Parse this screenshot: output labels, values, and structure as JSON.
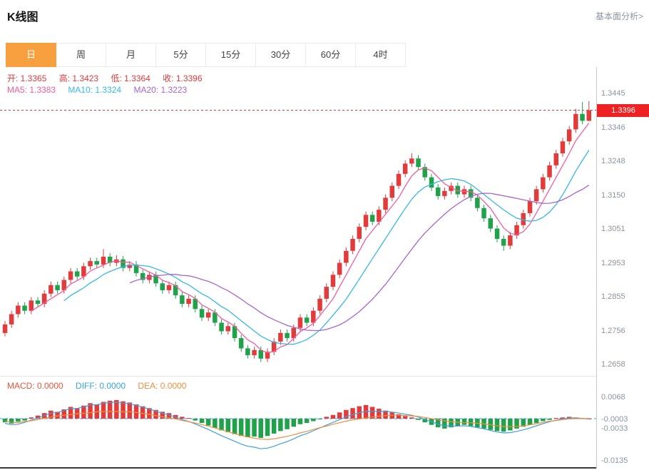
{
  "header": {
    "title": "K线图",
    "link": "基本面分析>"
  },
  "tabs": [
    "日",
    "周",
    "月",
    "5分",
    "15分",
    "30分",
    "60分",
    "4时"
  ],
  "active_tab": "日",
  "legend": {
    "open": "开: 1.3365",
    "high": "高: 1.3423",
    "low": "低: 1.3364",
    "close": "收: 1.3396",
    "ma5": "MA5: 1.3383",
    "ma10": "MA10: 1.3324",
    "ma20": "MA20: 1.3223",
    "macd": "MACD: 0.0000",
    "diff": "DIFF: 0.0000",
    "dea": "DEA: 0.0000"
  },
  "price_tag": "1.3396",
  "axis": {
    "main_ticks": [
      "1.3445",
      "1.3346",
      "1.3248",
      "1.3150",
      "1.3051",
      "1.2953",
      "1.2855",
      "1.2756",
      "1.2658"
    ],
    "macd_ticks": [
      "0.0068",
      "-0.0003",
      "-0.0033",
      "-0.0135"
    ]
  },
  "colors": {
    "up": "#e23b3b",
    "down": "#1fa24a",
    "ma5": "#f55c9c",
    "ma10": "#35b8e8",
    "ma20": "#a866cc",
    "diff": "#41a0dc",
    "dea": "#ef8f3c",
    "tag_bg": "#ee2222",
    "active_tab": "#f8a040"
  },
  "chart_data": {
    "type": "candlestick",
    "title": "K线图 (日)",
    "latest": {
      "open": 1.3365,
      "high": 1.3423,
      "low": 1.3364,
      "close": 1.3396
    },
    "ma": {
      "ma5": 1.3383,
      "ma10": 1.3324,
      "ma20": 1.3223
    },
    "price_axis_range": [
      1.2658,
      1.3445
    ],
    "macd_axis_range": [
      -0.0135,
      0.0068
    ],
    "current_price": 1.3396,
    "candles": [
      [
        1.2745,
        1.278,
        1.2735,
        1.277
      ],
      [
        1.277,
        1.281,
        1.276,
        1.28
      ],
      [
        1.28,
        1.2835,
        1.279,
        1.2825
      ],
      [
        1.2825,
        1.2835,
        1.28,
        1.281
      ],
      [
        1.281,
        1.285,
        1.28,
        1.284
      ],
      [
        1.284,
        1.285,
        1.282,
        1.283
      ],
      [
        1.283,
        1.287,
        1.282,
        1.286
      ],
      [
        1.286,
        1.2895,
        1.285,
        1.2885
      ],
      [
        1.2885,
        1.2895,
        1.286,
        1.287
      ],
      [
        1.287,
        1.291,
        1.286,
        1.29
      ],
      [
        1.29,
        1.2935,
        1.289,
        1.2925
      ],
      [
        1.2925,
        1.2935,
        1.29,
        1.291
      ],
      [
        1.291,
        1.295,
        1.29,
        1.294
      ],
      [
        1.294,
        1.2965,
        1.293,
        1.2955
      ],
      [
        1.2955,
        1.2965,
        1.2935,
        1.2945
      ],
      [
        1.2945,
        1.299,
        1.2935,
        1.2968
      ],
      [
        1.2968,
        1.2978,
        1.294,
        1.295
      ],
      [
        1.295,
        1.2972,
        1.294,
        1.296
      ],
      [
        1.296,
        1.297,
        1.2925,
        1.2935
      ],
      [
        1.2935,
        1.2955,
        1.2925,
        1.2945
      ],
      [
        1.2945,
        1.2955,
        1.291,
        1.292
      ],
      [
        1.292,
        1.293,
        1.289,
        1.29
      ],
      [
        1.29,
        1.2925,
        1.289,
        1.2915
      ],
      [
        1.2915,
        1.2925,
        1.288,
        1.289
      ],
      [
        1.289,
        1.29,
        1.286,
        1.287
      ],
      [
        1.287,
        1.2895,
        1.286,
        1.2885
      ],
      [
        1.2885,
        1.2895,
        1.2845,
        1.2855
      ],
      [
        1.2855,
        1.2865,
        1.282,
        1.283
      ],
      [
        1.283,
        1.2855,
        1.282,
        1.2845
      ],
      [
        1.2845,
        1.2855,
        1.2805,
        1.2815
      ],
      [
        1.2815,
        1.2825,
        1.278,
        1.279
      ],
      [
        1.279,
        1.2815,
        1.278,
        1.2805
      ],
      [
        1.2805,
        1.2815,
        1.2765,
        1.2775
      ],
      [
        1.2775,
        1.2785,
        1.274,
        1.275
      ],
      [
        1.275,
        1.2775,
        1.274,
        1.2765
      ],
      [
        1.2765,
        1.2775,
        1.272,
        1.273
      ],
      [
        1.273,
        1.274,
        1.269,
        1.27
      ],
      [
        1.27,
        1.271,
        1.267,
        1.268
      ],
      [
        1.268,
        1.2705,
        1.267,
        1.2695
      ],
      [
        1.2695,
        1.2705,
        1.266,
        1.267
      ],
      [
        1.267,
        1.27,
        1.266,
        1.269
      ],
      [
        1.269,
        1.273,
        1.268,
        1.272
      ],
      [
        1.272,
        1.2755,
        1.271,
        1.2745
      ],
      [
        1.2745,
        1.2755,
        1.272,
        1.273
      ],
      [
        1.273,
        1.277,
        1.272,
        1.276
      ],
      [
        1.276,
        1.28,
        1.275,
        1.279
      ],
      [
        1.279,
        1.28,
        1.2765,
        1.2775
      ],
      [
        1.2775,
        1.282,
        1.2765,
        1.281
      ],
      [
        1.281,
        1.2855,
        1.28,
        1.2845
      ],
      [
        1.2845,
        1.289,
        1.2835,
        1.288
      ],
      [
        1.288,
        1.2925,
        1.287,
        1.2915
      ],
      [
        1.2915,
        1.296,
        1.2905,
        1.295
      ],
      [
        1.295,
        1.2995,
        1.294,
        1.2985
      ],
      [
        1.2985,
        1.303,
        1.2975,
        1.302
      ],
      [
        1.302,
        1.3065,
        1.301,
        1.3055
      ],
      [
        1.3055,
        1.31,
        1.3045,
        1.309
      ],
      [
        1.309,
        1.31,
        1.306,
        1.307
      ],
      [
        1.307,
        1.3115,
        1.306,
        1.3105
      ],
      [
        1.3105,
        1.315,
        1.3095,
        1.314
      ],
      [
        1.314,
        1.3185,
        1.313,
        1.3175
      ],
      [
        1.3175,
        1.322,
        1.3165,
        1.321
      ],
      [
        1.321,
        1.325,
        1.32,
        1.324
      ],
      [
        1.324,
        1.327,
        1.323,
        1.3255
      ],
      [
        1.3255,
        1.3265,
        1.322,
        1.323
      ],
      [
        1.323,
        1.324,
        1.319,
        1.32
      ],
      [
        1.32,
        1.321,
        1.316,
        1.317
      ],
      [
        1.317,
        1.318,
        1.3135,
        1.3145
      ],
      [
        1.3145,
        1.317,
        1.3135,
        1.316
      ],
      [
        1.316,
        1.3185,
        1.315,
        1.3175
      ],
      [
        1.3175,
        1.3185,
        1.314,
        1.315
      ],
      [
        1.315,
        1.3175,
        1.314,
        1.3165
      ],
      [
        1.3165,
        1.3175,
        1.313,
        1.314
      ],
      [
        1.314,
        1.315,
        1.31,
        1.311
      ],
      [
        1.311,
        1.312,
        1.307,
        1.308
      ],
      [
        1.308,
        1.309,
        1.304,
        1.305
      ],
      [
        1.305,
        1.306,
        1.301,
        1.302
      ],
      [
        1.302,
        1.303,
        1.2985,
        1.3
      ],
      [
        1.3,
        1.304,
        1.299,
        1.303
      ],
      [
        1.303,
        1.307,
        1.302,
        1.306
      ],
      [
        1.306,
        1.3105,
        1.305,
        1.3095
      ],
      [
        1.3095,
        1.314,
        1.3085,
        1.313
      ],
      [
        1.313,
        1.3175,
        1.312,
        1.3165
      ],
      [
        1.3165,
        1.321,
        1.3155,
        1.32
      ],
      [
        1.32,
        1.3245,
        1.319,
        1.3235
      ],
      [
        1.3235,
        1.328,
        1.3225,
        1.327
      ],
      [
        1.327,
        1.3315,
        1.326,
        1.3305
      ],
      [
        1.3305,
        1.335,
        1.3295,
        1.334
      ],
      [
        1.334,
        1.34,
        1.333,
        1.3385
      ],
      [
        1.3385,
        1.342,
        1.3355,
        1.3365
      ],
      [
        1.3365,
        1.3423,
        1.3364,
        1.3396
      ]
    ],
    "macd_hist": [
      -0.0012,
      -0.0016,
      -0.001,
      -0.0006,
      0.0004,
      0.001,
      0.0018,
      0.0026,
      0.0022,
      0.003,
      0.0038,
      0.0034,
      0.0042,
      0.005,
      0.0046,
      0.0054,
      0.0058,
      0.006,
      0.0056,
      0.0052,
      0.0046,
      0.004,
      0.0034,
      0.0028,
      0.0022,
      0.0018,
      0.0012,
      0.0006,
      0.0002,
      -0.0006,
      -0.0014,
      -0.0022,
      -0.003,
      -0.0038,
      -0.0044,
      -0.005,
      -0.0056,
      -0.006,
      -0.0058,
      -0.0062,
      -0.0056,
      -0.0048,
      -0.004,
      -0.0034,
      -0.0026,
      -0.0018,
      -0.0014,
      -0.0008,
      -0.0002,
      0.0006,
      0.0012,
      0.002,
      0.0028,
      0.0034,
      0.004,
      0.0044,
      0.0038,
      0.0032,
      0.0026,
      0.002,
      0.0014,
      0.0008,
      0.0004,
      -0.0004,
      -0.0012,
      -0.002,
      -0.0028,
      -0.0032,
      -0.0028,
      -0.0024,
      -0.002,
      -0.0024,
      -0.0028,
      -0.0032,
      -0.0036,
      -0.004,
      -0.0042,
      -0.0038,
      -0.0032,
      -0.0026,
      -0.002,
      -0.0014,
      -0.0008,
      -0.0004,
      0.0002,
      0.0004,
      0.0006,
      0.0004,
      0.0002,
      0.0
    ],
    "macd_diff": [
      -0.0015,
      -0.002,
      -0.0018,
      -0.0012,
      -0.0005,
      0.0002,
      0.001,
      0.0018,
      0.002,
      0.0026,
      0.0032,
      0.0033,
      0.0038,
      0.0044,
      0.0045,
      0.005,
      0.0052,
      0.0053,
      0.005,
      0.0048,
      0.0043,
      0.0037,
      0.0031,
      0.0024,
      0.0017,
      0.0012,
      0.0005,
      -0.0003,
      -0.0009,
      -0.0017,
      -0.0026,
      -0.0035,
      -0.0045,
      -0.0055,
      -0.0064,
      -0.0073,
      -0.0082,
      -0.0089,
      -0.0092,
      -0.0097,
      -0.0095,
      -0.0089,
      -0.0081,
      -0.0074,
      -0.0065,
      -0.0055,
      -0.0048,
      -0.0039,
      -0.003,
      -0.0021,
      -0.0012,
      -0.0003,
      0.0006,
      0.0013,
      0.0019,
      0.0024,
      0.0024,
      0.0024,
      0.0023,
      0.0021,
      0.0018,
      0.0014,
      0.0011,
      0.0005,
      -0.0002,
      -0.001,
      -0.0018,
      -0.0023,
      -0.0024,
      -0.0024,
      -0.0023,
      -0.0025,
      -0.0029,
      -0.0033,
      -0.0038,
      -0.0043,
      -0.0046,
      -0.0045,
      -0.0041,
      -0.0036,
      -0.003,
      -0.0023,
      -0.0016,
      -0.001,
      -0.0005,
      -0.0001,
      0.0002,
      0.0002,
      0.0001,
      0.0
    ]
  }
}
